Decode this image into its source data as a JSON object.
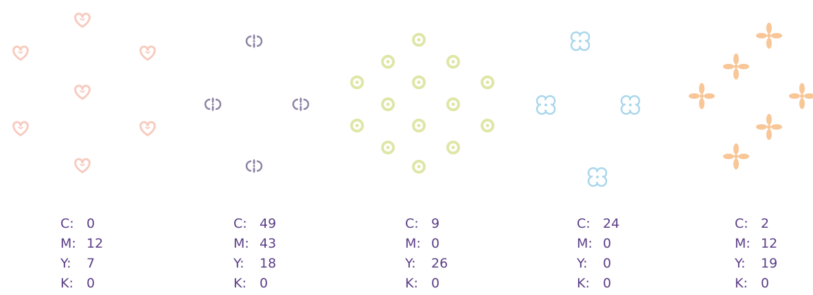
{
  "channel_labels": [
    "C:",
    "M:",
    "Y:",
    "K:"
  ],
  "swatches": [
    {
      "values": [
        0,
        12,
        7,
        0
      ]
    },
    {
      "values": [
        49,
        43,
        18,
        0
      ]
    },
    {
      "values": [
        9,
        0,
        26,
        0
      ]
    },
    {
      "values": [
        24,
        0,
        0,
        0
      ]
    },
    {
      "values": [
        2,
        12,
        19,
        0
      ]
    }
  ]
}
